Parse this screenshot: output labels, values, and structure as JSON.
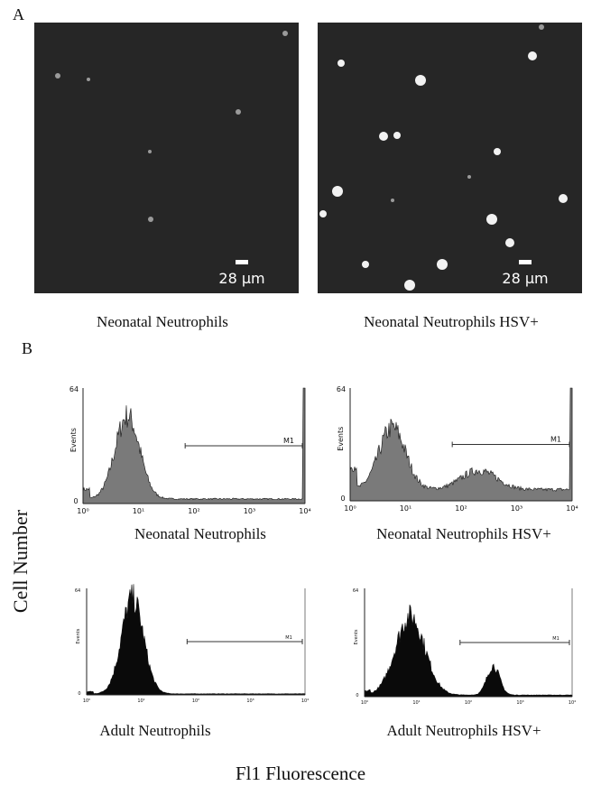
{
  "panel_a": {
    "label": "A",
    "images": [
      {
        "caption": "Neonatal Neutrophils",
        "scale_bar": "28 μm"
      },
      {
        "caption": "Neonatal Neutrophils HSV+",
        "scale_bar": "28 μm"
      }
    ]
  },
  "panel_b": {
    "label": "B",
    "y_label": "Cell Number",
    "x_label": "Fl1 Fluorescence",
    "x_ticks": [
      "10⁰",
      "10¹",
      "10²",
      "10³",
      "10⁴"
    ],
    "histograms": [
      {
        "caption": "Neonatal Neutrophils",
        "y_max": "64",
        "y_min": "0",
        "y_axis_label": "Events",
        "gate_label": "M1"
      },
      {
        "caption": "Neonatal Neutrophils HSV+",
        "y_max": "64",
        "y_min": "0",
        "y_axis_label": "Events",
        "gate_label": "M1"
      },
      {
        "caption": "Adult Neutrophils",
        "y_max": "64",
        "y_min": "0",
        "y_axis_label": "Events",
        "gate_label": "M1"
      },
      {
        "caption": "Adult Neutrophils HSV+",
        "y_max": "64",
        "y_min": "0",
        "y_axis_label": "Events",
        "gate_label": "M1"
      }
    ]
  }
}
